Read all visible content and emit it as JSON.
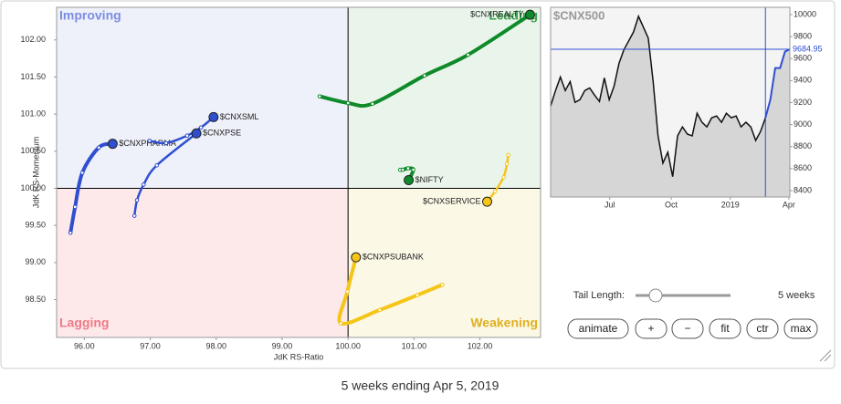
{
  "chart_data": [
    {
      "type": "scatter",
      "x_label": "JdK RS-Ratio",
      "y_label": "JdK RS-Momentum",
      "quadrants": {
        "top_left": "Improving",
        "top_right": "Leading",
        "bottom_left": "Lagging",
        "bottom_right": "Weakening"
      },
      "center": 100,
      "xlim": [
        95.58,
        102.92
      ],
      "ylim": [
        97.99,
        102.44
      ],
      "xticks": [
        {
          "value": 96,
          "label": "96.00"
        },
        {
          "value": 97,
          "label": "97.00"
        },
        {
          "value": 98,
          "label": "98.00"
        },
        {
          "value": 99,
          "label": "99.00"
        },
        {
          "value": 100,
          "label": "100.00"
        },
        {
          "value": 101,
          "label": "101.00"
        },
        {
          "value": 102,
          "label": "102.00"
        }
      ],
      "yticks": [
        {
          "value": 98.5,
          "label": "98.50"
        },
        {
          "value": 99,
          "label": "99.00"
        },
        {
          "value": 99.5,
          "label": "99.50"
        },
        {
          "value": 100,
          "label": "100.00"
        },
        {
          "value": 100.5,
          "label": "100.50"
        },
        {
          "value": 101,
          "label": "101.00"
        },
        {
          "value": 101.5,
          "label": "101.50"
        },
        {
          "value": 102,
          "label": "102.00"
        }
      ],
      "series": [
        {
          "name": "$CNXREALTY",
          "color": "#0e8a2a",
          "x": [
            99.57,
            100.0,
            100.37,
            101.16,
            101.82,
            102.76
          ],
          "y": [
            101.24,
            101.15,
            101.14,
            101.52,
            101.8,
            102.34
          ]
        },
        {
          "name": "$CNXPHARMA",
          "color": "#2f4fd0",
          "x": [
            95.79,
            95.86,
            95.97,
            96.22,
            96.43
          ],
          "y": [
            99.4,
            99.75,
            100.21,
            100.55,
            100.6
          ]
        },
        {
          "name": "$CNXSML",
          "color": "#2f4fd0",
          "x": [
            96.99,
            97.24,
            97.56,
            97.77,
            97.96
          ],
          "y": [
            100.64,
            100.61,
            100.71,
            100.82,
            100.96
          ]
        },
        {
          "name": "$CNXPSE",
          "color": "#2f4fd0",
          "x": [
            96.76,
            96.8,
            96.9,
            97.1,
            97.7
          ],
          "y": [
            99.63,
            99.84,
            100.05,
            100.31,
            100.74
          ]
        },
        {
          "name": "$NIFTY",
          "color": "#0e8a2a",
          "x": [
            100.79,
            100.83,
            100.91,
            100.99,
            100.92
          ],
          "y": [
            100.25,
            100.25,
            100.27,
            100.25,
            100.11
          ]
        },
        {
          "name": "$CNXSERVICE",
          "color": "#f5c518",
          "x": [
            102.43,
            102.41,
            102.36,
            102.23,
            102.11
          ],
          "y": [
            100.45,
            100.33,
            100.15,
            99.96,
            99.82
          ]
        },
        {
          "name": "$CNXPSUBANK",
          "color": "#f5c518",
          "x": [
            101.43,
            101.05,
            100.48,
            99.89,
            99.99,
            100.12
          ],
          "y": [
            98.7,
            98.56,
            98.36,
            98.18,
            98.61,
            99.07
          ]
        }
      ]
    },
    {
      "type": "line",
      "title": "$CNX500",
      "color": "#111111",
      "values": [
        9169,
        9309,
        9432,
        9309,
        9391,
        9202,
        9226,
        9309,
        9333,
        9268,
        9210,
        9424,
        9226,
        9350,
        9556,
        9679,
        9761,
        9844,
        9984,
        9885,
        9786,
        9391,
        8897,
        8650,
        8749,
        8527,
        8897,
        8979,
        8914,
        8897,
        9103,
        9021,
        8979,
        9062,
        9078,
        9021,
        9103,
        9062,
        9078,
        8979,
        9021,
        8979,
        8856,
        8938,
        9062,
        9226,
        9514,
        9514,
        9663,
        9684.95
      ],
      "xlim": [
        0,
        49
      ],
      "ylim": [
        8342,
        10066
      ],
      "xticks": [
        {
          "value": 12.1,
          "label": "Jul"
        },
        {
          "value": 24.7,
          "label": "Oct"
        },
        {
          "value": 36.8,
          "label": "2019"
        },
        {
          "value": 48.8,
          "label": "Apr"
        }
      ],
      "yticks": [
        8400,
        8600,
        8800,
        9000,
        9200,
        9400,
        9600,
        9800,
        10000
      ]
    }
  ],
  "controls": {
    "tail_label": "Tail Length:",
    "tail_value": "5 weeks",
    "buttons": [
      "animate",
      "+",
      "−",
      "fit",
      "ctr",
      "max"
    ]
  },
  "caption": "5 weeks ending Apr 5, 2019"
}
